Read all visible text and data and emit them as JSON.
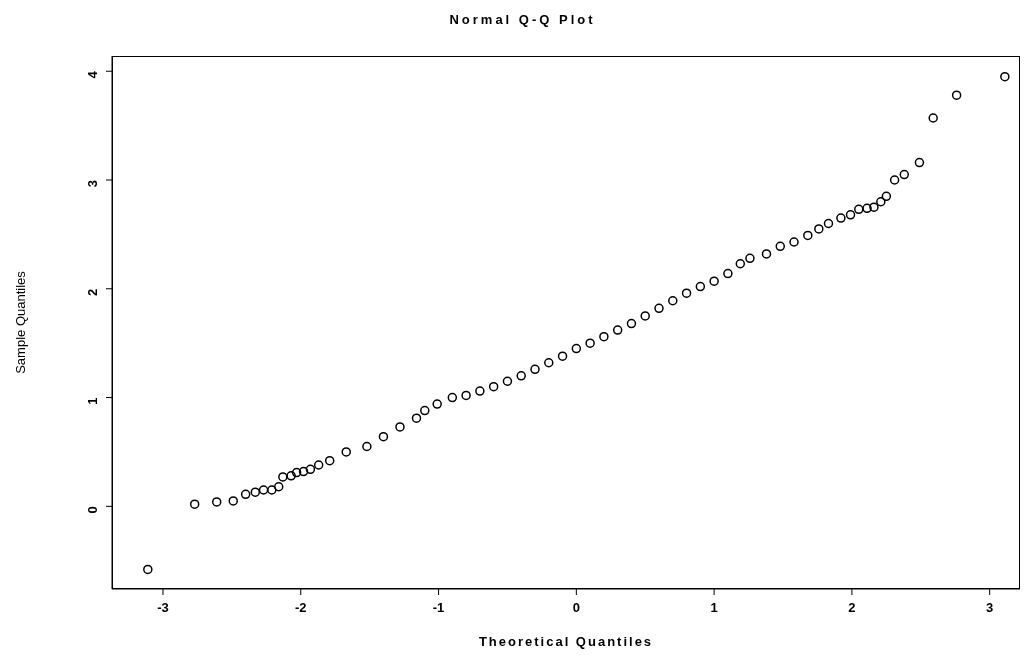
{
  "chart_data": {
    "type": "scatter",
    "title": "Normal Q-Q Plot",
    "xlabel": "Theoretical Quantiles",
    "ylabel": "Sample Quantiles",
    "x": [
      -3.11,
      -2.77,
      -2.61,
      -2.49,
      -2.4,
      -2.33,
      -2.27,
      -2.21,
      -2.16,
      -2.13,
      -2.07,
      -2.03,
      -1.98,
      -1.93,
      -1.87,
      -1.79,
      -1.67,
      -1.52,
      -1.4,
      -1.28,
      -1.16,
      -1.1,
      -1.01,
      -0.9,
      -0.8,
      -0.7,
      -0.6,
      -0.5,
      -0.4,
      -0.3,
      -0.2,
      -0.1,
      0,
      0.1,
      0.2,
      0.3,
      0.4,
      0.5,
      0.6,
      0.7,
      0.8,
      0.9,
      1.0,
      1.1,
      1.19,
      1.26,
      1.38,
      1.48,
      1.58,
      1.68,
      1.76,
      1.83,
      1.92,
      1.99,
      2.05,
      2.11,
      2.16,
      2.21,
      2.25,
      2.31,
      2.38,
      2.49,
      2.59,
      2.76,
      3.11
    ],
    "values": [
      -0.58,
      0.02,
      0.04,
      0.05,
      0.11,
      0.13,
      0.15,
      0.15,
      0.18,
      0.27,
      0.28,
      0.31,
      0.32,
      0.34,
      0.38,
      0.42,
      0.5,
      0.55,
      0.64,
      0.73,
      0.81,
      0.88,
      0.94,
      1.0,
      1.02,
      1.06,
      1.1,
      1.15,
      1.2,
      1.26,
      1.32,
      1.38,
      1.45,
      1.5,
      1.56,
      1.62,
      1.68,
      1.75,
      1.82,
      1.89,
      1.96,
      2.02,
      2.07,
      2.14,
      2.23,
      2.28,
      2.32,
      2.39,
      2.43,
      2.49,
      2.55,
      2.6,
      2.65,
      2.68,
      2.73,
      2.74,
      2.75,
      2.8,
      2.85,
      3.0,
      3.05,
      3.16,
      3.57,
      3.78,
      3.95
    ],
    "color": "#000000",
    "marker": "circle",
    "grid": false,
    "xlim": [
      -3.37,
      3.22
    ],
    "xticks": [
      -3,
      -2,
      -1,
      0,
      1,
      2,
      3
    ],
    "ylim": [
      -0.76,
      4.14
    ],
    "yticks": [
      0,
      1,
      2,
      3,
      4
    ]
  }
}
